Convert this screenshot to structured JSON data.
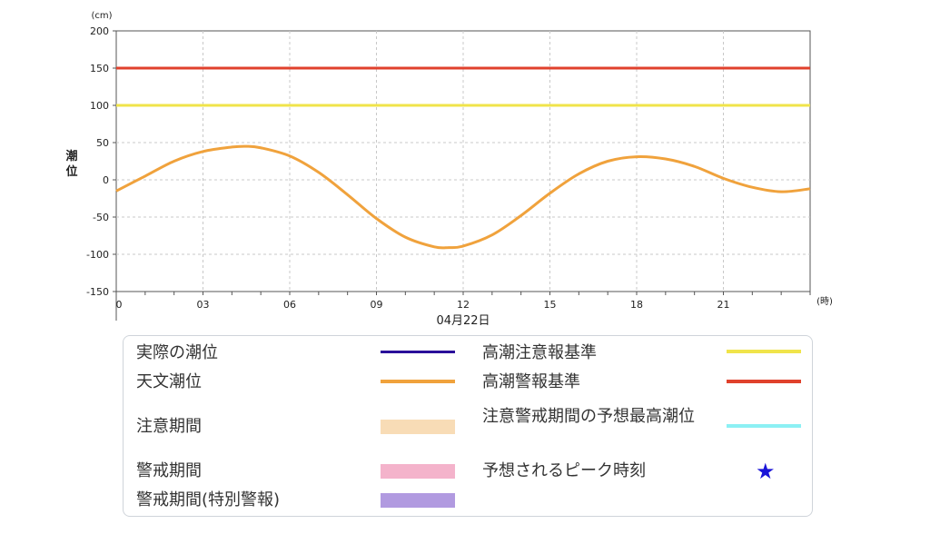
{
  "chart_data": {
    "type": "line",
    "y_unit": "(cm)",
    "ylabel": "潮位",
    "x_unit": "(時)",
    "date_label": "04月22日",
    "ylim": [
      -150,
      200
    ],
    "yticks": [
      -150,
      -100,
      -50,
      0,
      50,
      100,
      150,
      200
    ],
    "xlim": [
      0,
      24
    ],
    "xticks": [
      {
        "x": 0,
        "label": "0"
      },
      {
        "x": 3,
        "label": "03"
      },
      {
        "x": 6,
        "label": "06"
      },
      {
        "x": 9,
        "label": "09"
      },
      {
        "x": 12,
        "label": "12"
      },
      {
        "x": 15,
        "label": "15"
      },
      {
        "x": 18,
        "label": "18"
      },
      {
        "x": 21,
        "label": "21"
      }
    ],
    "grid": true,
    "reference_lines": [
      {
        "name": "高潮警報基準",
        "value": 150,
        "color": "#e0412c"
      },
      {
        "name": "高潮注意報基準",
        "value": 100,
        "color": "#f0e44a"
      }
    ],
    "series": [
      {
        "name": "天文潮位",
        "color": "#f0a23c",
        "x": [
          0,
          1,
          2,
          3,
          4,
          4.5,
          5,
          6,
          7,
          8,
          9,
          10,
          11,
          11.5,
          12,
          13,
          14,
          15,
          16,
          17,
          18,
          19,
          20,
          21,
          22,
          23,
          24
        ],
        "y": [
          -15,
          5,
          25,
          38,
          44,
          45,
          43,
          32,
          10,
          -20,
          -52,
          -77,
          -90,
          -91,
          -89,
          -74,
          -48,
          -18,
          8,
          25,
          31,
          28,
          18,
          2,
          -10,
          -16,
          -12
        ]
      }
    ]
  },
  "legend": {
    "items": [
      {
        "label": "実際の潮位",
        "kind": "line",
        "color": "#2a0e9a"
      },
      {
        "label": "天文潮位",
        "kind": "line",
        "color": "#f0a23c"
      },
      {
        "label": "注意期間",
        "kind": "box",
        "color": "#f8dcb6"
      },
      {
        "label": "警戒期間",
        "kind": "box",
        "color": "#f4b3cb"
      },
      {
        "label": "警戒期間(特別警報)",
        "kind": "box",
        "color": "#b19ae0"
      },
      {
        "label": "高潮注意報基準",
        "kind": "line",
        "color": "#f0e44a"
      },
      {
        "label": "高潮警報基準",
        "kind": "line",
        "color": "#e0412c"
      },
      {
        "label": "注意警戒期間の予想最高潮位",
        "kind": "line",
        "color": "#8cf0f4"
      },
      {
        "label": "予想されるピーク時刻",
        "kind": "star",
        "color": "#1a14d8",
        "glyph": "★"
      }
    ]
  }
}
